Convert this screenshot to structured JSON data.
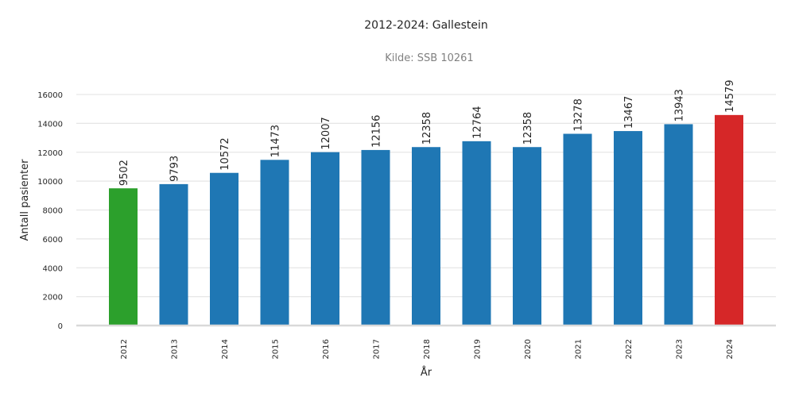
{
  "chart_data": {
    "type": "bar",
    "title": "2012-2024: Gallestein",
    "subtitle": "Kilde: SSB 10261",
    "xlabel": "År",
    "ylabel": "Antall pasienter",
    "categories": [
      "2012",
      "2013",
      "2014",
      "2015",
      "2016",
      "2017",
      "2018",
      "2019",
      "2020",
      "2021",
      "2022",
      "2023",
      "2024"
    ],
    "values": [
      9502,
      9793,
      10572,
      11473,
      12007,
      12156,
      12358,
      12764,
      12358,
      13278,
      13467,
      13943,
      14579
    ],
    "ylim": [
      0,
      16000
    ],
    "yticks": [
      0,
      2000,
      4000,
      6000,
      8000,
      10000,
      12000,
      14000,
      16000
    ],
    "grid": true,
    "colors": {
      "default": "#1f77b4",
      "first": "#2ca02c",
      "last": "#d62728"
    }
  }
}
